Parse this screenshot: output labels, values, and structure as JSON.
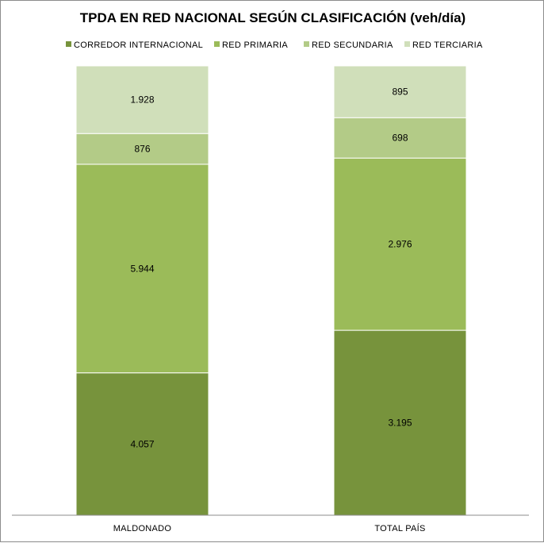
{
  "chart_data": {
    "type": "bar",
    "stacked": true,
    "title": "TPDA EN RED NACIONAL SEGÚN CLASIFICACIÓN (veh/día)",
    "xlabel": "",
    "ylabel": "",
    "categories": [
      "MALDONADO",
      "TOTAL PAÍS"
    ],
    "series": [
      {
        "name": "CORREDOR INTERNACIONAL",
        "color": "#77933c",
        "values": [
          4057,
          3195
        ],
        "labels": [
          "4.057",
          "3.195"
        ]
      },
      {
        "name": "RED PRIMARIA",
        "color": "#9bbb59",
        "values": [
          5944,
          2976
        ],
        "labels": [
          "5.944",
          "2.976"
        ]
      },
      {
        "name": "RED SECUNDARIA",
        "color": "#b3cb87",
        "values": [
          876,
          698
        ],
        "labels": [
          "876",
          "698"
        ]
      },
      {
        "name": "RED TERCIARIA",
        "color": "#d0dfba",
        "values": [
          1928,
          895
        ],
        "labels": [
          "1.928",
          "895"
        ]
      }
    ],
    "normalized_100_percent": true,
    "grid": false,
    "legend_position": "top"
  }
}
